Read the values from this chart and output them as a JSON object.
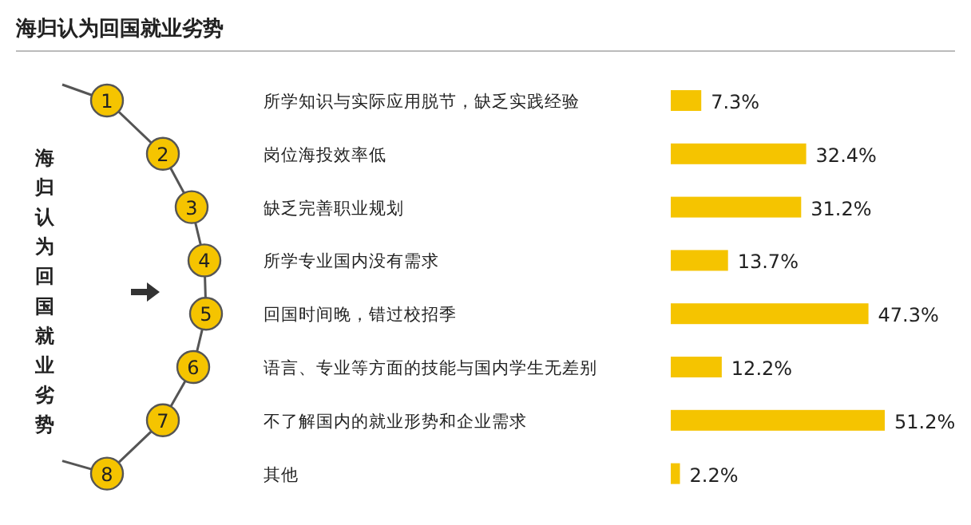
{
  "chart_data": {
    "type": "bar",
    "orientation": "horizontal",
    "title": "海归认为回国就业劣势",
    "ylabel": "海归认为回国就业劣势",
    "categories": [
      "所学知识与实际应用脱节，缺乏实践经验",
      "岗位海投效率低",
      "缺乏完善职业规划",
      "所学专业国内没有需求",
      "回国时间晚，错过校招季",
      "语言、专业等方面的技能与国内学生无差别",
      "不了解国内的就业形势和企业需求",
      "其他"
    ],
    "values": [
      7.3,
      32.4,
      31.2,
      13.7,
      47.3,
      12.2,
      51.2,
      2.2
    ],
    "value_labels": [
      "7.3%",
      "32.4%",
      "31.2%",
      "13.7%",
      "47.3%",
      "12.2%",
      "51.2%",
      "2.2%"
    ],
    "color": "#f5c400",
    "annotations": [
      "1",
      "2",
      "3",
      "4",
      "5",
      "6",
      "7",
      "8"
    ]
  }
}
